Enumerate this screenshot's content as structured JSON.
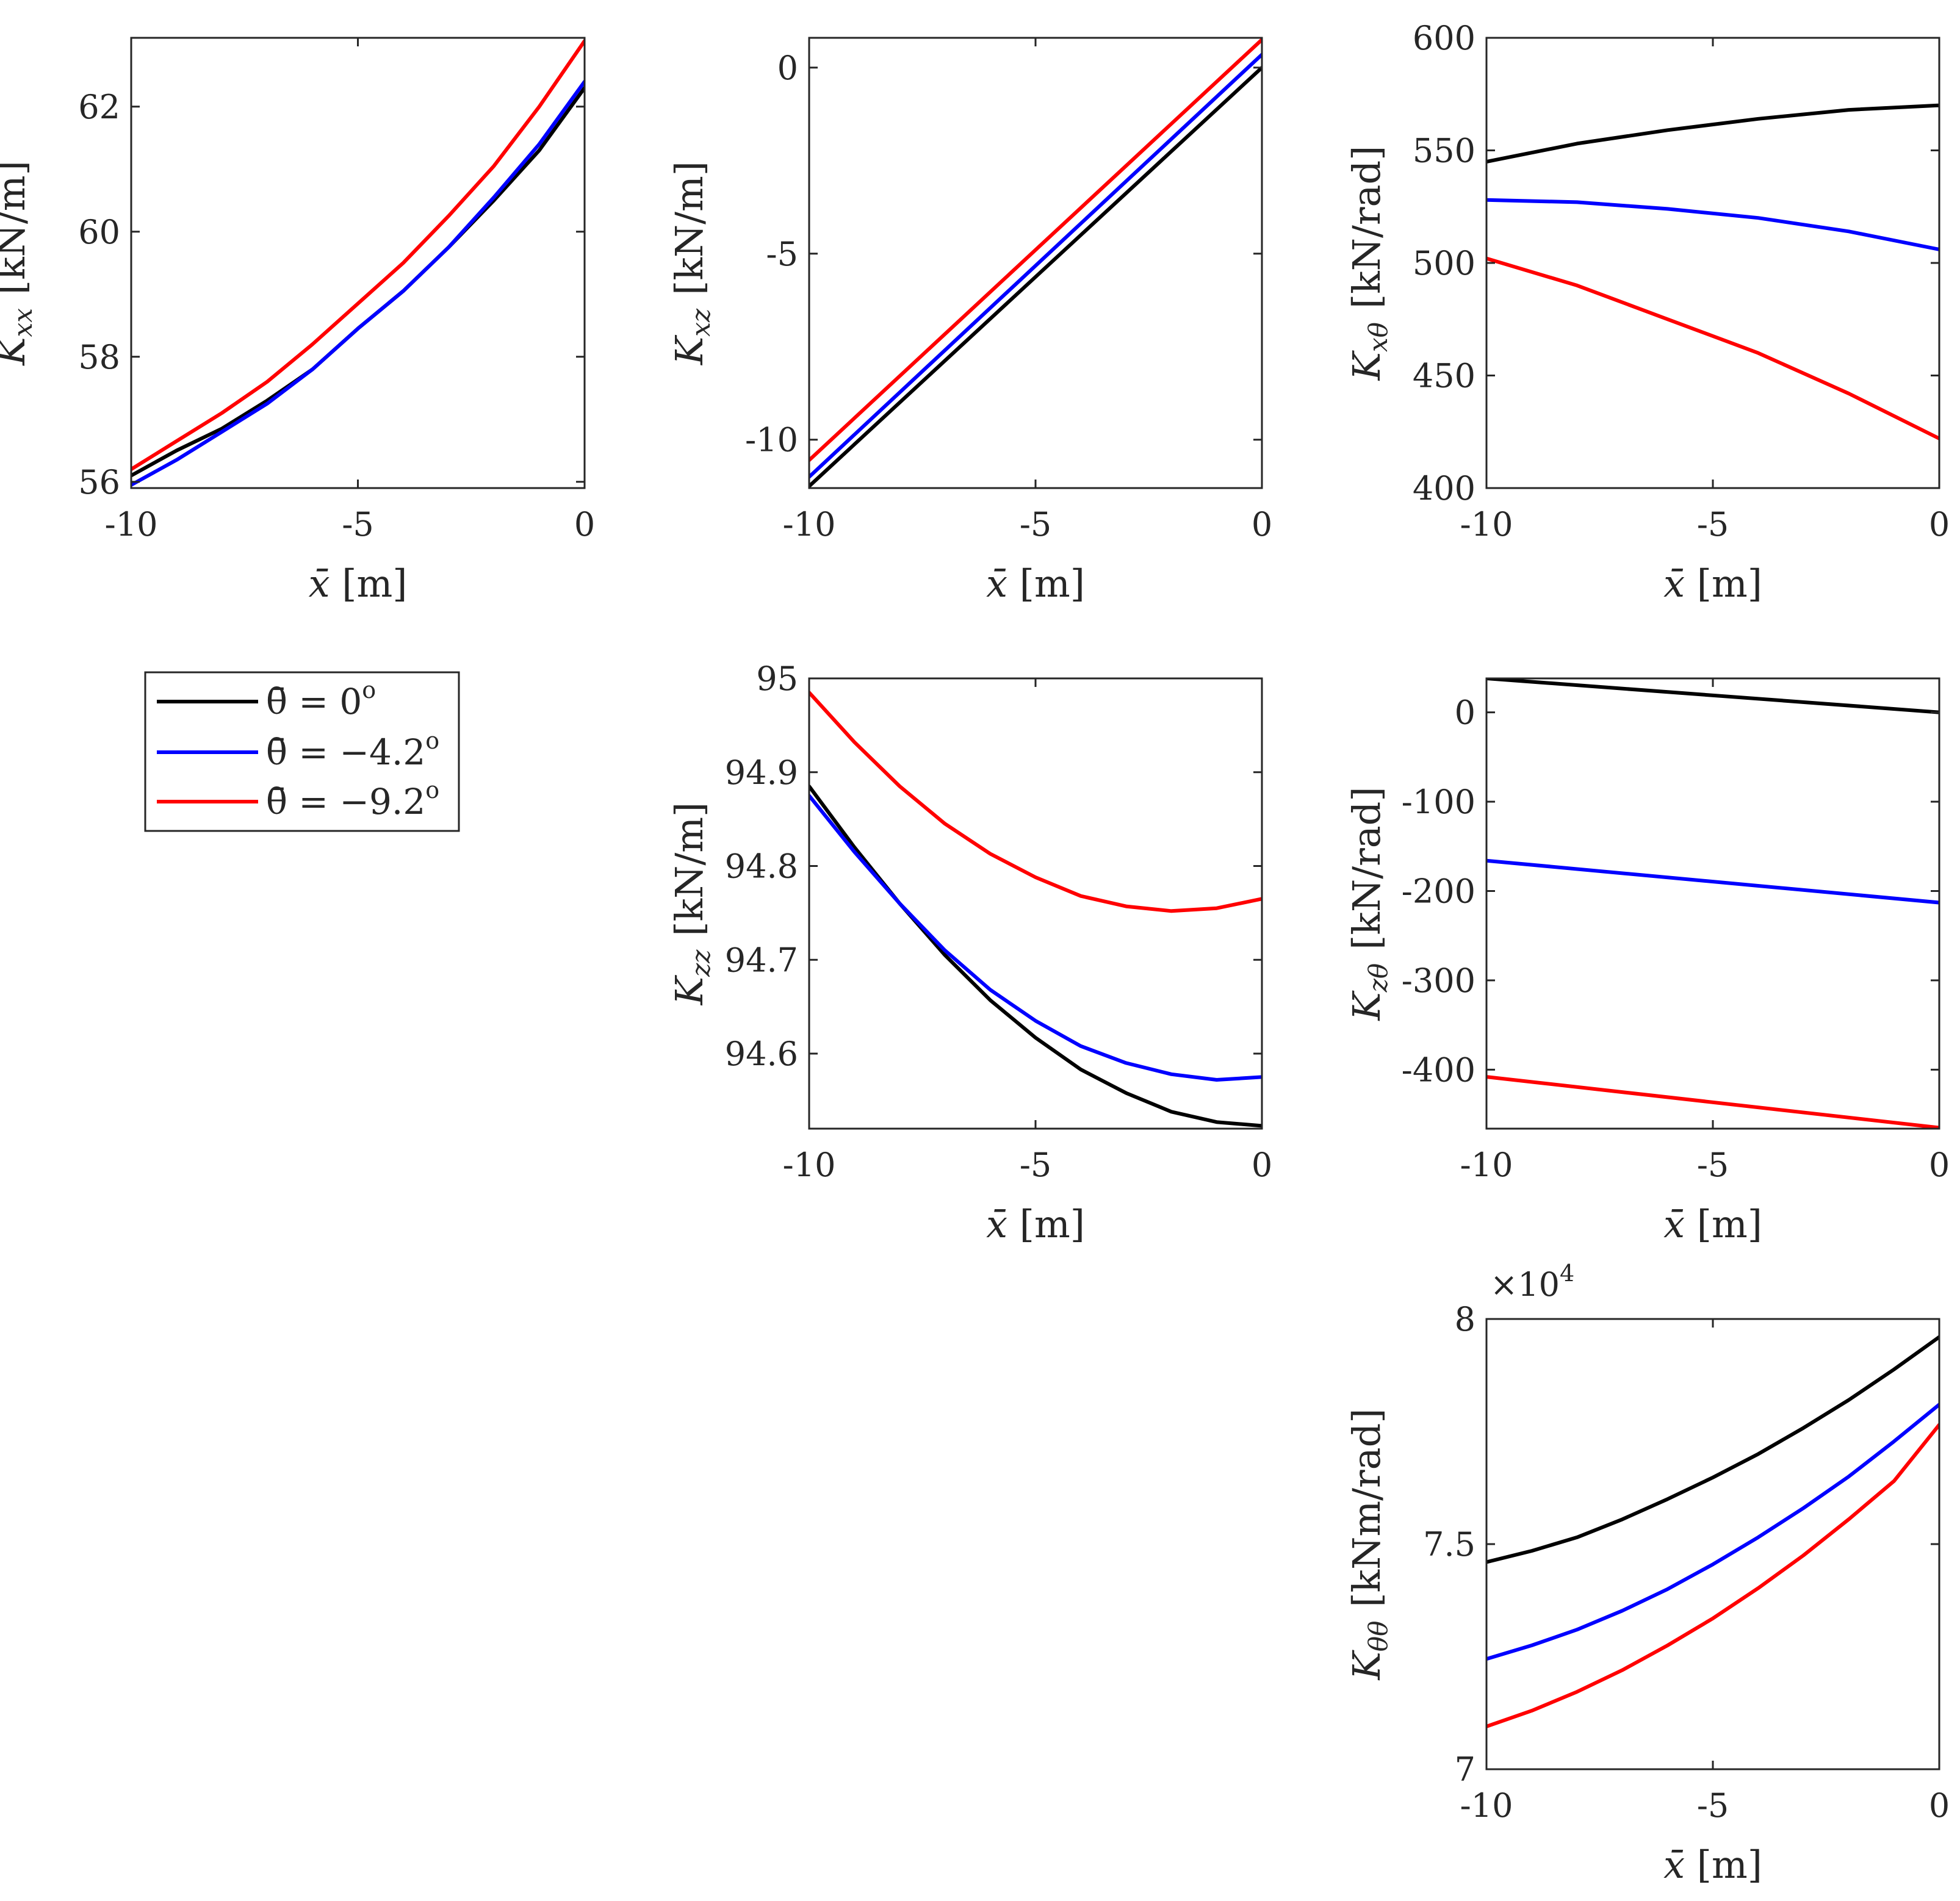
{
  "chart_data": [
    {
      "id": "kxx",
      "type": "line",
      "ylabel": {
        "sym": "K",
        "sub": "xx",
        "unit": "[kN/m]"
      },
      "xlabel": {
        "sym": "x̄",
        "unit": "[m]"
      },
      "xlim": [
        -10,
        0
      ],
      "ylim": [
        55.9,
        63.1
      ],
      "xticks": [
        -10,
        -5,
        0
      ],
      "xtick_labels": [
        "-10",
        "-5",
        "0"
      ],
      "yticks": [
        56,
        58,
        60,
        62
      ],
      "ytick_labels": [
        "56",
        "58",
        "60",
        "62"
      ],
      "x": [
        -10,
        -9,
        -8,
        -7,
        -6,
        -5,
        -4,
        -3,
        -2,
        -1,
        0
      ],
      "series": [
        {
          "name": "θ̄ = 0°",
          "color": "#000000",
          "values": [
            56.1,
            56.5,
            56.85,
            57.3,
            57.8,
            58.45,
            59.05,
            59.75,
            60.5,
            61.3,
            62.3
          ]
        },
        {
          "name": "θ̄ = −4.2°",
          "color": "#0000ff",
          "values": [
            55.95,
            56.35,
            56.8,
            57.25,
            57.8,
            58.45,
            59.05,
            59.75,
            60.55,
            61.4,
            62.4
          ]
        },
        {
          "name": "θ̄ = −9.2°",
          "color": "#ff0000",
          "values": [
            56.2,
            56.65,
            57.1,
            57.6,
            58.2,
            58.85,
            59.5,
            60.25,
            61.05,
            62.0,
            63.05
          ]
        }
      ]
    },
    {
      "id": "kxz",
      "type": "line",
      "ylabel": {
        "sym": "K",
        "sub": "xz",
        "unit": "[kN/m]"
      },
      "xlabel": {
        "sym": "x̄",
        "unit": "[m]"
      },
      "xlim": [
        -10,
        0
      ],
      "ylim": [
        -11.3,
        0.8
      ],
      "xticks": [
        -10,
        -5,
        0
      ],
      "xtick_labels": [
        "-10",
        "-5",
        "0"
      ],
      "yticks": [
        -10,
        -5,
        0
      ],
      "ytick_labels": [
        "-10",
        "-5",
        "0"
      ],
      "x": [
        -10,
        0
      ],
      "series": [
        {
          "name": "θ̄ = 0°",
          "color": "#000000",
          "values": [
            -11.25,
            0.0
          ]
        },
        {
          "name": "θ̄ = −4.2°",
          "color": "#0000ff",
          "values": [
            -11.0,
            0.35
          ]
        },
        {
          "name": "θ̄ = −9.2°",
          "color": "#ff0000",
          "values": [
            -10.55,
            0.75
          ]
        }
      ]
    },
    {
      "id": "kxtheta",
      "type": "line",
      "ylabel": {
        "sym": "K",
        "sub": "xθ",
        "unit": "[kN/rad]"
      },
      "xlabel": {
        "sym": "x̄",
        "unit": "[m]"
      },
      "xlim": [
        -10,
        0
      ],
      "ylim": [
        400,
        600
      ],
      "xticks": [
        -10,
        -5,
        0
      ],
      "xtick_labels": [
        "-10",
        "-5",
        "0"
      ],
      "yticks": [
        400,
        450,
        500,
        550,
        600
      ],
      "ytick_labels": [
        "400",
        "450",
        "500",
        "550",
        "600"
      ],
      "x": [
        -10,
        -8,
        -6,
        -4,
        -2,
        0
      ],
      "series": [
        {
          "name": "θ̄ = 0°",
          "color": "#000000",
          "values": [
            545,
            553,
            559,
            564,
            568,
            570
          ]
        },
        {
          "name": "θ̄ = −4.2°",
          "color": "#0000ff",
          "values": [
            528,
            527,
            524,
            520,
            514,
            506
          ]
        },
        {
          "name": "θ̄ = −9.2°",
          "color": "#ff0000",
          "values": [
            502,
            490,
            475,
            460,
            442,
            422
          ]
        }
      ]
    },
    {
      "id": "kzz",
      "type": "line",
      "ylabel": {
        "sym": "K",
        "sub": "zz",
        "unit": "[kN/m]"
      },
      "xlabel": {
        "sym": "x̄",
        "unit": "[m]"
      },
      "xlim": [
        -10,
        0
      ],
      "ylim": [
        94.52,
        95.0
      ],
      "xticks": [
        -10,
        -5,
        0
      ],
      "xtick_labels": [
        "-10",
        "-5",
        "0"
      ],
      "yticks": [
        94.6,
        94.7,
        94.8,
        94.9,
        95
      ],
      "ytick_labels": [
        "94.6",
        "94.7",
        "94.8",
        "94.9",
        "95"
      ],
      "x": [
        -10,
        -9,
        -8,
        -7,
        -6,
        -5,
        -4,
        -3,
        -2,
        -1,
        0
      ],
      "series": [
        {
          "name": "θ̄ = 0°",
          "color": "#000000",
          "values": [
            94.885,
            94.82,
            94.76,
            94.705,
            94.657,
            94.617,
            94.583,
            94.558,
            94.538,
            94.527,
            94.523
          ]
        },
        {
          "name": "θ̄ = −4.2°",
          "color": "#0000ff",
          "values": [
            94.875,
            94.815,
            94.76,
            94.71,
            94.668,
            94.635,
            94.608,
            94.59,
            94.578,
            94.572,
            94.575
          ]
        },
        {
          "name": "θ̄ = −9.2°",
          "color": "#ff0000",
          "values": [
            94.985,
            94.932,
            94.885,
            94.845,
            94.813,
            94.788,
            94.768,
            94.757,
            94.752,
            94.755,
            94.765
          ]
        }
      ]
    },
    {
      "id": "kztheta",
      "type": "line",
      "ylabel": {
        "sym": "K",
        "sub": "zθ",
        "unit": "[kN/rad]"
      },
      "xlabel": {
        "sym": "x̄",
        "unit": "[m]"
      },
      "xlim": [
        -10,
        0
      ],
      "ylim": [
        -466,
        38
      ],
      "xticks": [
        -10,
        -5,
        0
      ],
      "xtick_labels": [
        "-10",
        "-5",
        "0"
      ],
      "yticks": [
        -400,
        -300,
        -200,
        -100,
        0
      ],
      "ytick_labels": [
        "-400",
        "-300",
        "-200",
        "-100",
        "0"
      ],
      "x": [
        -10,
        0
      ],
      "series": [
        {
          "name": "θ̄ = 0°",
          "color": "#000000",
          "values": [
            38,
            0
          ]
        },
        {
          "name": "θ̄ = −4.2°",
          "color": "#0000ff",
          "values": [
            -166,
            -213
          ]
        },
        {
          "name": "θ̄ = −9.2°",
          "color": "#ff0000",
          "values": [
            -408,
            -465
          ]
        }
      ]
    },
    {
      "id": "ktheta",
      "type": "line",
      "ylabel": {
        "sym": "K",
        "sub": "θθ",
        "unit": "[kNm/rad]"
      },
      "xlabel": {
        "sym": "x̄",
        "unit": "[m]"
      },
      "exponent": {
        "base": "×10",
        "power": "4"
      },
      "xlim": [
        -10,
        0
      ],
      "ylim": [
        7.0,
        8.0
      ],
      "xticks": [
        -10,
        -5,
        0
      ],
      "xtick_labels": [
        "-10",
        "-5",
        "0"
      ],
      "yticks": [
        7,
        7.5,
        8
      ],
      "ytick_labels": [
        "7",
        "7.5",
        "8"
      ],
      "x": [
        -10,
        -9,
        -8,
        -7,
        -6,
        -5,
        -4,
        -3,
        -2,
        -1,
        0
      ],
      "series": [
        {
          "name": "θ̄ = 0°",
          "color": "#000000",
          "values": [
            7.46,
            7.485,
            7.515,
            7.555,
            7.6,
            7.648,
            7.7,
            7.758,
            7.82,
            7.888,
            7.96
          ]
        },
        {
          "name": "θ̄ = −4.2°",
          "color": "#0000ff",
          "values": [
            7.245,
            7.275,
            7.31,
            7.352,
            7.4,
            7.455,
            7.515,
            7.58,
            7.65,
            7.728,
            7.81
          ]
        },
        {
          "name": "θ̄ = −9.2°",
          "color": "#ff0000",
          "values": [
            7.095,
            7.13,
            7.172,
            7.22,
            7.275,
            7.335,
            7.402,
            7.475,
            7.555,
            7.64,
            7.765
          ]
        }
      ]
    }
  ],
  "legend": {
    "entries": [
      {
        "prefix": "θ̄ = ",
        "value": "0",
        "sup": "o",
        "color": "#000000"
      },
      {
        "prefix": "θ̄ = ",
        "value": "−4.2",
        "sup": "o",
        "color": "#0000ff"
      },
      {
        "prefix": "θ̄ = ",
        "value": "−9.2",
        "sup": "o",
        "color": "#ff0000"
      }
    ]
  }
}
